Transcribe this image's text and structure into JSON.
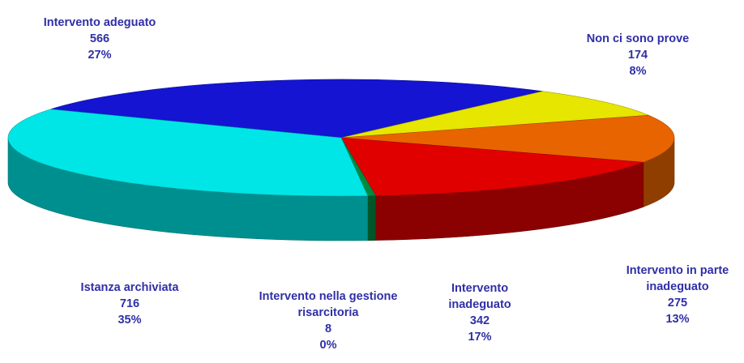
{
  "chart_data": {
    "type": "pie",
    "three_d": true,
    "categories": [
      "Intervento adeguato",
      "Non ci sono prove",
      "Intervento in parte inadeguato",
      "Intervento inadeguato",
      "Intervento nella gestione risarcitoria",
      "Istanza archiviata"
    ],
    "values": [
      566,
      174,
      275,
      342,
      8,
      716
    ],
    "percent_labels": [
      "27%",
      "8%",
      "13%",
      "17%",
      "0%",
      "35%"
    ],
    "colors": [
      "#1414d2",
      "#e6e600",
      "#e86400",
      "#e00000",
      "#008a40",
      "#00e6e6"
    ]
  }
}
